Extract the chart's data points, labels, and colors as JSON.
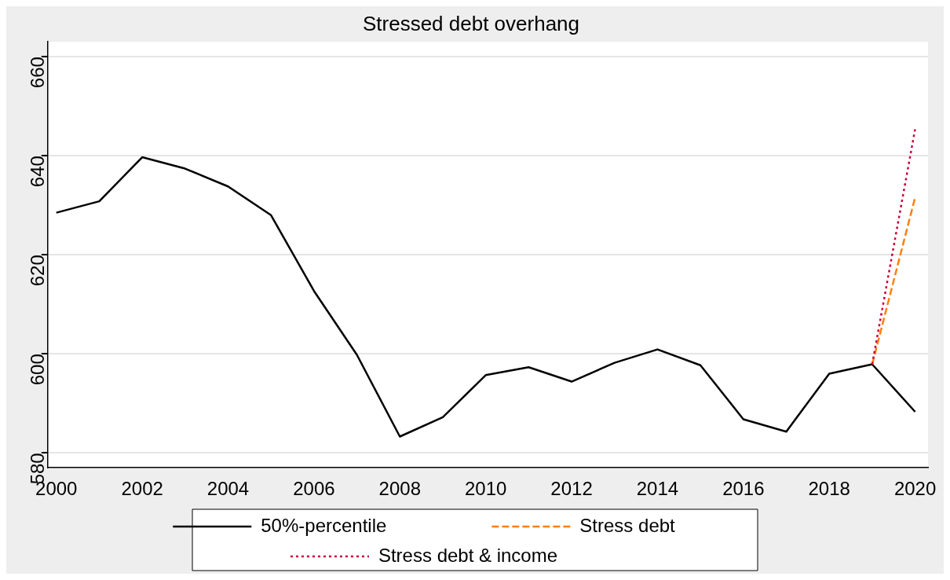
{
  "chart_data": {
    "type": "line",
    "title": "Stressed debt overhang",
    "x": [
      2000,
      2001,
      2002,
      2003,
      2004,
      2005,
      2006,
      2007,
      2008,
      2009,
      2010,
      2011,
      2012,
      2013,
      2014,
      2015,
      2016,
      2017,
      2018,
      2019,
      2020
    ],
    "series": [
      {
        "name": "50%-percentile",
        "color": "#000000",
        "line_style": "solid",
        "values": [
          628.5,
          630.8,
          639.7,
          637.4,
          633.8,
          628.0,
          612.7,
          599.8,
          583.3,
          587.2,
          595.7,
          597.3,
          594.4,
          598.2,
          600.9,
          597.7,
          586.8,
          584.3,
          596.0,
          597.9,
          588.3
        ]
      },
      {
        "name": "Stress debt",
        "color": "#ff7f0e",
        "line_style": "dashed",
        "values": [
          null,
          null,
          null,
          null,
          null,
          null,
          null,
          null,
          null,
          null,
          null,
          null,
          null,
          null,
          null,
          null,
          null,
          null,
          null,
          597.9,
          631.6
        ]
      },
      {
        "name": "Stress debt & income",
        "color": "#c8003c",
        "line_style": "dotted",
        "values": [
          null,
          null,
          null,
          null,
          null,
          null,
          null,
          null,
          null,
          null,
          null,
          null,
          null,
          null,
          null,
          null,
          null,
          null,
          null,
          597.9,
          645.4
        ]
      }
    ],
    "xlim": [
      1999.8,
      2020.3
    ],
    "xticks": [
      2000,
      2002,
      2004,
      2006,
      2008,
      2010,
      2012,
      2014,
      2016,
      2018,
      2020
    ],
    "ylim": [
      577,
      663
    ],
    "yticks": [
      580,
      600,
      620,
      640,
      660
    ],
    "grid": "y",
    "legend": "bottom"
  }
}
